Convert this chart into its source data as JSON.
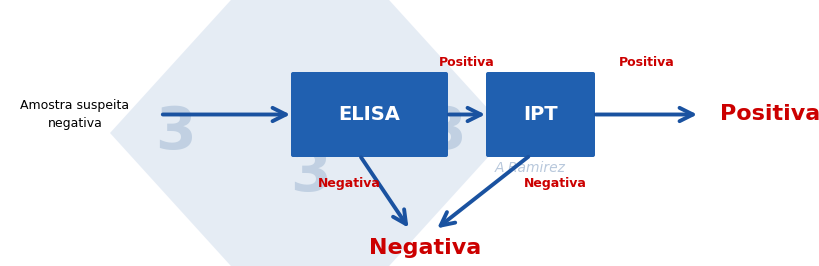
{
  "bg_color": "#ffffff",
  "box_color": "#2060b0",
  "box_text_color": "#ffffff",
  "arrow_color": "#1a52a0",
  "red_color": "#cc0000",
  "black_color": "#000000",
  "elisa_label": "ELISA",
  "ipt_label": "IPT",
  "left_label": "Amostra suspeita\nnegativa",
  "positiva_label": "Positiva",
  "negativa_label": "Negativa",
  "positiva_right_label": "Positiva",
  "negativa_bottom_label": "Negativa",
  "watermark_text": "A Ramirez",
  "watermark_color": "#b8c8dc",
  "diamond_color": "#cddaeb",
  "three_color": "#b8cade"
}
